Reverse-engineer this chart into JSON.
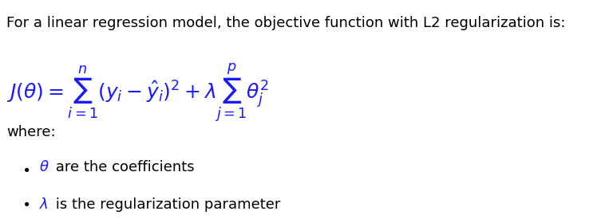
{
  "background_color": "#ffffff",
  "text_color": "#1a1aff",
  "intro_text": "For a linear regression model, the objective function with L2 regularization is:",
  "intro_color": "#000000",
  "intro_fontsize": 13,
  "formula": "$J(\\theta) = \\sum_{i=1}^{n}(y_i - \\hat{y}_i)^2 + \\lambda\\sum_{j=1}^{p} \\theta_j^2$",
  "formula_fontsize": 18,
  "where_text": "where:",
  "where_fontsize": 13,
  "bullet1_symbol": "$\\bullet$",
  "bullet1_math": "$\\theta$",
  "bullet1_rest": " are the coefficients",
  "bullet2_symbol": "$\\bullet$",
  "bullet2_math": "$\\lambda$",
  "bullet2_rest": " is the regularization parameter",
  "bullet_fontsize": 13,
  "bullet_math_color": "#1a1aff",
  "bullet_text_color": "#000000"
}
